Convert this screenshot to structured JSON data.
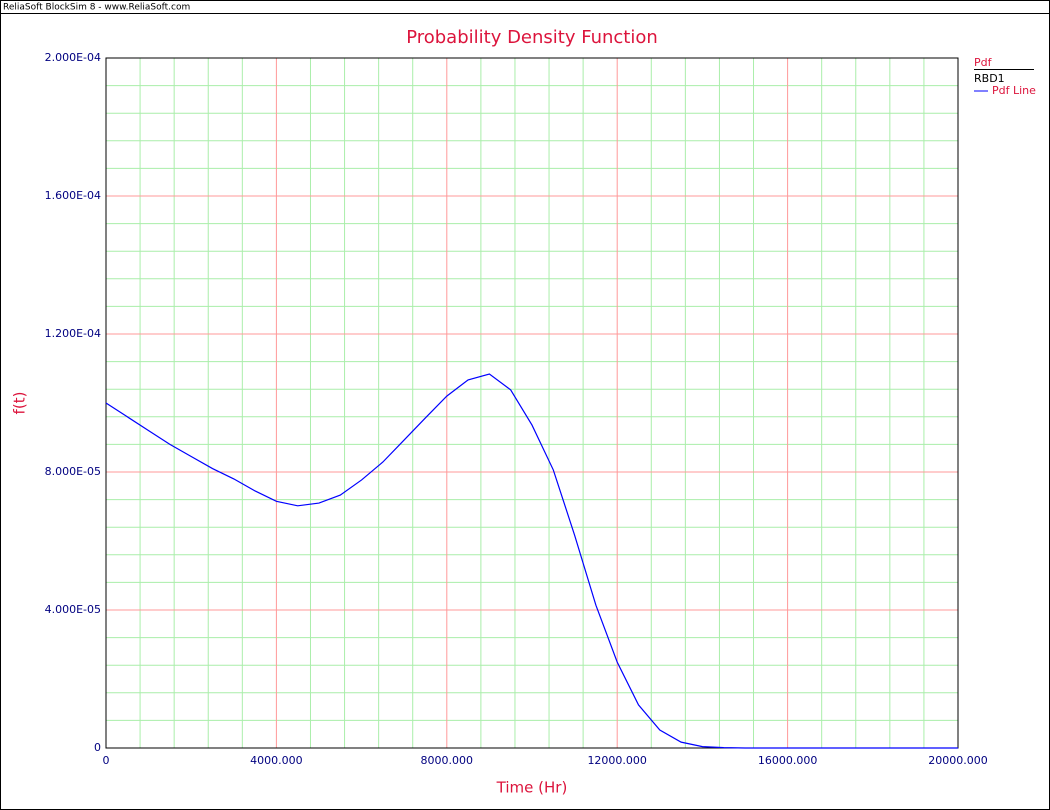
{
  "window_title": "ReliaSoft BlockSim 8 - www.ReliaSoft.com",
  "chart_data": {
    "type": "line",
    "title": "Probability Density Function",
    "x_label": "Time (Hr)",
    "y_label": "f(t)",
    "legend": {
      "heading": "Pdf",
      "group": "RBD1"
    },
    "legend_position": "right",
    "x": [
      0,
      500,
      1000,
      1500,
      2000,
      2500,
      3000,
      3500,
      4000,
      4500,
      5000,
      5500,
      6000,
      6500,
      7000,
      7500,
      8000,
      8500,
      9000,
      9500,
      10000,
      10500,
      11000,
      11500,
      12000,
      12500,
      13000,
      13500,
      14000,
      14500,
      15000,
      16000,
      17000,
      18000,
      19000,
      20000
    ],
    "series": [
      {
        "name": "Pdf Line",
        "color": "#0000ff",
        "values": [
          0.0001,
          9.6e-05,
          9.2e-05,
          8.8e-05,
          8.45e-05,
          8.1e-05,
          7.8e-05,
          7.45e-05,
          7.15e-05,
          7.02e-05,
          7.1e-05,
          7.33e-05,
          7.77e-05,
          8.29e-05,
          8.93e-05,
          9.57e-05,
          0.000102,
          0.0001067,
          0.0001084,
          0.0001038,
          9.36e-05,
          8.06e-05,
          6.17e-05,
          4.14e-05,
          2.49e-05,
          1.25e-05,
          5.2e-06,
          1.7e-06,
          4e-07,
          1e-07,
          0,
          0,
          0,
          0,
          0,
          0
        ]
      }
    ],
    "xlim": [
      0,
      20000
    ],
    "xticks": [
      0,
      {
        "value": 4000,
        "label": "4000.000"
      },
      {
        "value": 8000,
        "label": "8000.000"
      },
      {
        "value": 12000,
        "label": "12000.000"
      },
      {
        "value": 16000,
        "label": "16000.000"
      },
      {
        "value": 20000,
        "label": "20000.000"
      }
    ],
    "ylim": [
      0,
      0.0002
    ],
    "yticks": [
      0,
      {
        "value": 4e-05,
        "label": "4.000E-05"
      },
      {
        "value": 8e-05,
        "label": "8.000E-05"
      },
      {
        "value": 0.00012,
        "label": "1.200E-04"
      },
      {
        "value": 0.00016,
        "label": "1.600E-04"
      },
      {
        "value": 0.0002,
        "label": "2.000E-04"
      }
    ],
    "grid": true,
    "grid_color": "#ff9999",
    "minor_grid_color": "#aaeeaa",
    "minor_grid_divisions": 5
  }
}
